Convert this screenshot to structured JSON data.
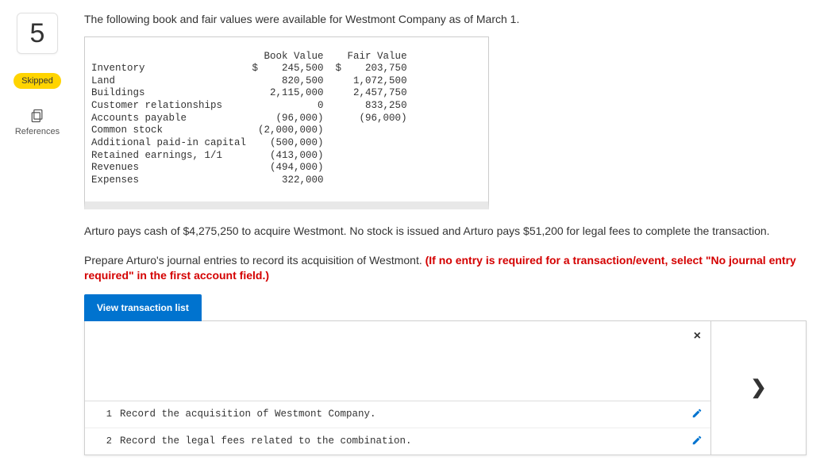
{
  "question_number": "5",
  "skipped_label": "Skipped",
  "references_label": "References",
  "intro_text": "The following book and fair values were available for Westmont Company as of March 1.",
  "table": {
    "header": {
      "c1": "Book Value",
      "c2": "Fair Value"
    },
    "rows": [
      {
        "label": "Inventory",
        "bv": "$    245,500",
        "fv": "$    203,750"
      },
      {
        "label": "Land",
        "bv": "     820,500",
        "fv": "  1,072,500"
      },
      {
        "label": "Buildings",
        "bv": "   2,115,000",
        "fv": "  2,457,750"
      },
      {
        "label": "Customer relationships",
        "bv": "           0",
        "fv": "    833,250"
      },
      {
        "label": "Accounts payable",
        "bv": "    (96,000)",
        "fv": "   (96,000)"
      },
      {
        "label": "Common stock",
        "bv": " (2,000,000)",
        "fv": ""
      },
      {
        "label": "Additional paid-in capital",
        "bv": "   (500,000)",
        "fv": ""
      },
      {
        "label": "Retained earnings, 1/1",
        "bv": "   (413,000)",
        "fv": ""
      },
      {
        "label": "Revenues",
        "bv": "   (494,000)",
        "fv": ""
      },
      {
        "label": "Expenses",
        "bv": "     322,000",
        "fv": ""
      }
    ]
  },
  "para2": "Arturo pays cash of $4,275,250 to acquire Westmont. No stock is issued and Arturo pays $51,200 for legal fees to complete the transaction.",
  "para3_pre": "Prepare Arturo's journal entries to record its acquisition of Westmont. ",
  "para3_red": "(If no entry is required for a transaction/event, select \"No journal entry required\" in the first account field.)",
  "view_button": "View transaction list",
  "close_symbol": "×",
  "transactions": [
    {
      "n": "1",
      "desc": "Record the acquisition of Westmont Company."
    },
    {
      "n": "2",
      "desc": "Record the legal fees related to the combination."
    }
  ],
  "chevron": "›",
  "colors": {
    "accent_blue": "#0073cf",
    "skipped_bg": "#ffd400",
    "instr_red": "#d40000"
  }
}
